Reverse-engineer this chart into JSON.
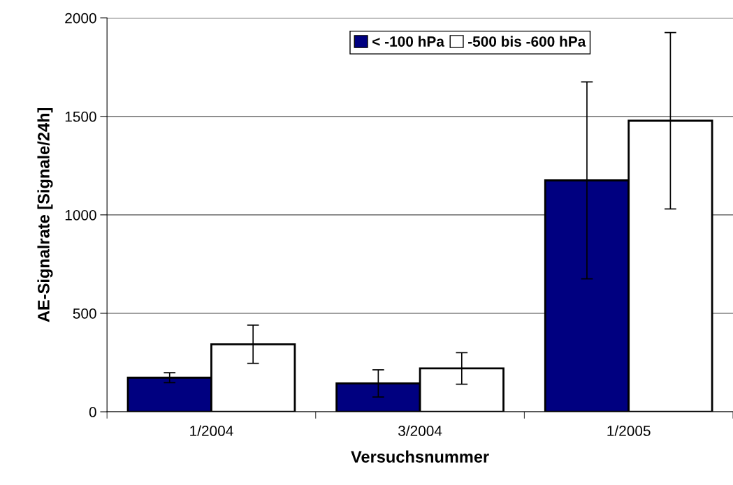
{
  "chart_data": {
    "type": "bar",
    "xlabel": "Versuchsnummer",
    "ylabel": "AE-Signalrate [Signale/24h]",
    "categories": [
      "1/2004",
      "3/2004",
      "1/2005"
    ],
    "series": [
      {
        "name": "< -100 hPa",
        "color": "#000080",
        "values": [
          173,
          144,
          1175
        ],
        "errors": [
          25,
          69,
          500
        ]
      },
      {
        "name": "-500 bis -600 hPa",
        "color": "#ffffff",
        "values": [
          343,
          220,
          1478
        ],
        "errors": [
          97,
          80,
          448
        ]
      }
    ],
    "ylim": [
      0,
      2000
    ],
    "yticks": [
      0,
      500,
      1000,
      1500,
      2000
    ],
    "grid": "y",
    "legend": "top"
  }
}
